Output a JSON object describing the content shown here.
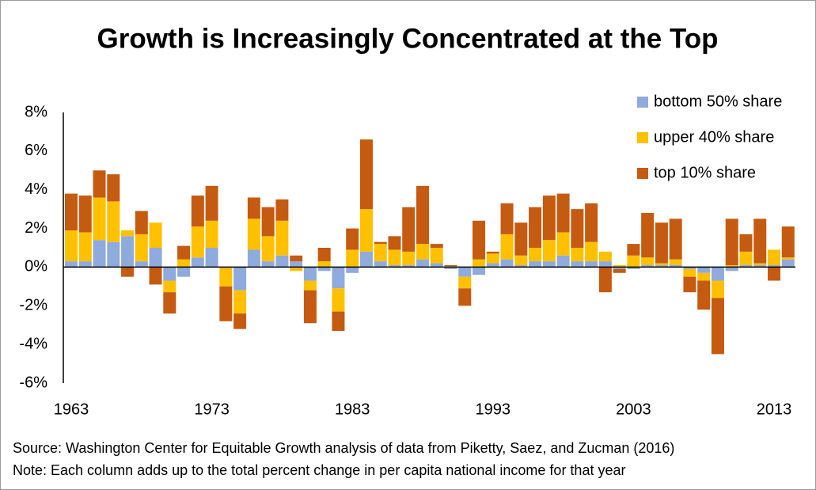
{
  "chart_data": {
    "type": "stacked-bar",
    "title": "Growth is Increasingly Concentrated at the Top",
    "source": "Source: Washington Center for Equitable Growth analysis of data from Piketty, Saez, and Zucman (2016)",
    "note": "Note: Each column adds up to the total percent change in per capita national income for that year",
    "categories": [
      "1963",
      null,
      null,
      null,
      null,
      null,
      null,
      null,
      null,
      null,
      "1973",
      null,
      null,
      null,
      null,
      null,
      null,
      null,
      null,
      null,
      "1983",
      null,
      null,
      null,
      null,
      null,
      null,
      null,
      null,
      null,
      "1993",
      null,
      null,
      null,
      null,
      null,
      null,
      null,
      null,
      null,
      "2003",
      null,
      null,
      null,
      null,
      null,
      null,
      null,
      null,
      null,
      "2013",
      null
    ],
    "series": [
      {
        "name": "bottom 50% share",
        "color": "#8faadc",
        "values": [
          0.3,
          0.3,
          1.4,
          1.3,
          1.6,
          0.3,
          1.0,
          -0.7,
          -0.5,
          0.5,
          1.0,
          0,
          -1.2,
          0.9,
          0.3,
          0.6,
          0.3,
          -0.7,
          -0.2,
          -1.1,
          -0.3,
          0.8,
          0.3,
          0.1,
          0.1,
          0.4,
          0.2,
          -0.1,
          -0.5,
          -0.4,
          0.2,
          0.4,
          0.1,
          0.3,
          0.3,
          0.6,
          0.3,
          0.3,
          0.3,
          -0.1,
          -0.1,
          0.1,
          0.1,
          0.1,
          -0.1,
          -0.3,
          -0.7,
          -0.2,
          0.1,
          0.1,
          0.1,
          0.4
        ]
      },
      {
        "name": "upper 40% share",
        "color": "#ffc000",
        "values": [
          1.6,
          1.5,
          2.2,
          2.1,
          0.3,
          1.4,
          1.3,
          -0.6,
          0.4,
          1.6,
          1.4,
          -1.0,
          -1.2,
          1.6,
          1.3,
          1.8,
          -0.2,
          -0.5,
          0.3,
          -1.2,
          0.9,
          2.2,
          0.9,
          0.8,
          0.7,
          0.8,
          0.8,
          0.05,
          -0.6,
          0.4,
          0.5,
          1.3,
          0.5,
          0.7,
          1.1,
          1.2,
          0.7,
          1.0,
          0.5,
          0.1,
          0.6,
          0.4,
          0.1,
          0.3,
          -0.4,
          -0.4,
          -0.9,
          0.1,
          0.7,
          0.1,
          0.8,
          0.1
        ]
      },
      {
        "name": "top 10% share",
        "color": "#c55a11",
        "values": [
          1.9,
          1.9,
          1.4,
          1.4,
          -0.5,
          1.2,
          -0.9,
          -1.1,
          0.7,
          1.6,
          1.8,
          -1.8,
          -0.8,
          1.1,
          1.5,
          1.1,
          0.3,
          -1.7,
          0.7,
          -1.0,
          1.1,
          3.6,
          0.1,
          0.7,
          2.3,
          3.0,
          0.2,
          0.05,
          -0.9,
          2.0,
          0.1,
          1.6,
          1.7,
          2.1,
          2.3,
          2.0,
          2.0,
          2.0,
          -1.3,
          -0.2,
          0.6,
          2.3,
          2.1,
          2.1,
          -0.8,
          -1.5,
          -2.9,
          2.4,
          0.9,
          2.3,
          -0.7,
          1.6
        ]
      }
    ],
    "ylim": [
      -6,
      8
    ],
    "yticks": [
      {
        "value": -6,
        "label": "-6%"
      },
      {
        "value": -4,
        "label": "-4%"
      },
      {
        "value": -2,
        "label": "-2%"
      },
      {
        "value": 0,
        "label": "0%"
      },
      {
        "value": 2,
        "label": "2%"
      },
      {
        "value": 4,
        "label": "4%"
      },
      {
        "value": 6,
        "label": "6%"
      },
      {
        "value": 8,
        "label": "8%"
      }
    ],
    "legend": "top-right"
  }
}
